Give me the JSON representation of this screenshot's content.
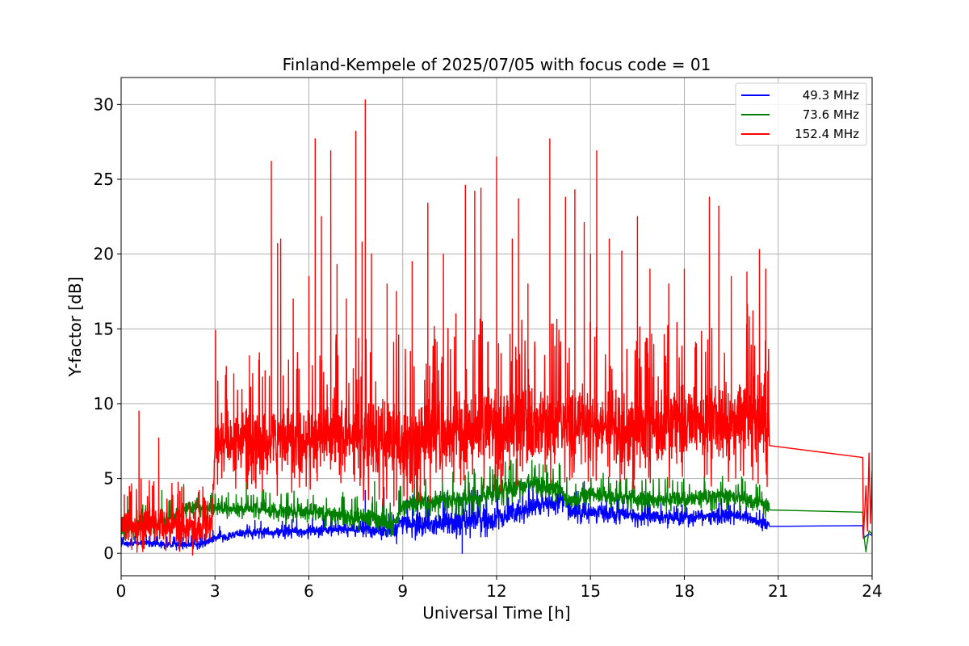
{
  "chart_data": {
    "type": "line",
    "title": "Finland-Kempele of 2025/07/05 with focus code = 01",
    "xlabel": "Universal Time [h]",
    "ylabel": "Y-factor [dB]",
    "xlim": [
      0,
      24
    ],
    "ylim": [
      -1.5,
      31.8
    ],
    "xticks": [
      0,
      3,
      6,
      9,
      12,
      15,
      18,
      21,
      24
    ],
    "yticks": [
      0,
      5,
      10,
      15,
      20,
      25,
      30
    ],
    "grid": true,
    "legend_position": "top-right",
    "series": [
      {
        "name": "49.3 MHz",
        "color": "#0000ff",
        "style": "noisy",
        "base": [
          [
            0.0,
            0.6
          ],
          [
            0.5,
            0.7
          ],
          [
            1.5,
            0.6
          ],
          [
            2.5,
            0.6
          ],
          [
            3.0,
            1.0
          ],
          [
            4.0,
            1.4
          ],
          [
            6.0,
            1.5
          ],
          [
            7.0,
            1.6
          ],
          [
            8.0,
            1.6
          ],
          [
            8.7,
            1.5
          ],
          [
            9.0,
            2.0
          ],
          [
            10.0,
            2.0
          ],
          [
            11.0,
            2.2
          ],
          [
            12.0,
            2.3
          ],
          [
            12.5,
            2.8
          ],
          [
            13.5,
            3.3
          ],
          [
            14.2,
            3.6
          ],
          [
            14.3,
            2.8
          ],
          [
            15.0,
            2.8
          ],
          [
            16.0,
            2.6
          ],
          [
            17.0,
            2.4
          ],
          [
            18.0,
            2.4
          ],
          [
            19.0,
            2.6
          ],
          [
            20.0,
            2.4
          ],
          [
            20.7,
            1.9
          ]
        ],
        "amp": [
          [
            0.0,
            0.2
          ],
          [
            3.0,
            0.3
          ],
          [
            8.0,
            0.4
          ],
          [
            9.0,
            0.8
          ],
          [
            12.0,
            0.8
          ],
          [
            14.0,
            0.6
          ],
          [
            17.0,
            0.5
          ],
          [
            20.7,
            0.4
          ]
        ],
        "spikes": [
          [
            7.8,
            4.2
          ],
          [
            8.4,
            4.4
          ],
          [
            10.9,
            0.0
          ],
          [
            14.8,
            4.8
          ]
        ],
        "tail": [
          [
            20.72,
            1.8
          ],
          [
            23.7,
            1.85
          ]
        ],
        "end": [
          [
            23.72,
            1.0
          ],
          [
            23.9,
            1.3
          ],
          [
            24.0,
            1.2
          ]
        ]
      },
      {
        "name": "73.6 MHz",
        "color": "#008000",
        "style": "noisy",
        "base": [
          [
            0.0,
            1.6
          ],
          [
            1.5,
            2.2
          ],
          [
            2.0,
            3.0
          ],
          [
            3.0,
            3.0
          ],
          [
            4.0,
            3.0
          ],
          [
            5.0,
            2.8
          ],
          [
            6.0,
            2.8
          ],
          [
            7.0,
            2.5
          ],
          [
            8.0,
            2.4
          ],
          [
            8.7,
            1.8
          ],
          [
            9.0,
            3.2
          ],
          [
            10.0,
            3.5
          ],
          [
            11.0,
            3.6
          ],
          [
            12.0,
            4.2
          ],
          [
            13.0,
            4.6
          ],
          [
            14.0,
            4.4
          ],
          [
            14.3,
            3.5
          ],
          [
            15.0,
            4.0
          ],
          [
            16.0,
            3.8
          ],
          [
            17.0,
            3.6
          ],
          [
            18.0,
            3.6
          ],
          [
            19.0,
            3.8
          ],
          [
            20.0,
            3.6
          ],
          [
            20.7,
            3.2
          ]
        ],
        "amp": [
          [
            0.0,
            0.6
          ],
          [
            3.0,
            0.5
          ],
          [
            9.0,
            0.7
          ],
          [
            12.0,
            0.8
          ],
          [
            15.0,
            0.6
          ],
          [
            20.7,
            0.6
          ]
        ],
        "spikes": [
          [
            0.2,
            3.8
          ],
          [
            1.3,
            4.2
          ],
          [
            2.0,
            4.6
          ],
          [
            4.0,
            4.9
          ],
          [
            8.1,
            4.8
          ],
          [
            12.4,
            5.8
          ],
          [
            14.0,
            6.0
          ]
        ],
        "tail": [
          [
            20.72,
            2.9
          ],
          [
            23.7,
            2.75
          ]
        ],
        "end": [
          [
            23.72,
            1.5
          ],
          [
            23.8,
            0.1
          ],
          [
            23.9,
            1.5
          ],
          [
            24.0,
            1.3
          ]
        ]
      },
      {
        "name": "152.4 MHz",
        "color": "#ff0000",
        "style": "noisy",
        "base": [
          [
            0.0,
            1.8
          ],
          [
            1.0,
            2.0
          ],
          [
            2.0,
            1.6
          ],
          [
            2.9,
            1.8
          ],
          [
            3.0,
            7.4
          ],
          [
            4.0,
            7.6
          ],
          [
            5.0,
            7.6
          ],
          [
            6.0,
            7.6
          ],
          [
            7.0,
            7.8
          ],
          [
            8.0,
            7.6
          ],
          [
            9.0,
            7.4
          ],
          [
            10.0,
            7.8
          ],
          [
            11.0,
            8.2
          ],
          [
            12.0,
            8.6
          ],
          [
            13.0,
            8.6
          ],
          [
            14.0,
            8.8
          ],
          [
            15.0,
            8.6
          ],
          [
            16.0,
            8.4
          ],
          [
            17.0,
            8.4
          ],
          [
            18.0,
            8.6
          ],
          [
            19.0,
            8.8
          ],
          [
            20.0,
            9.4
          ],
          [
            20.7,
            9.2
          ]
        ],
        "amp": [
          [
            0.0,
            1.3
          ],
          [
            2.9,
            1.2
          ],
          [
            3.0,
            2.0
          ],
          [
            5.0,
            2.5
          ],
          [
            9.0,
            3.0
          ],
          [
            12.0,
            3.0
          ],
          [
            15.0,
            2.8
          ],
          [
            18.0,
            2.8
          ],
          [
            20.7,
            3.2
          ]
        ],
        "spikes": [
          [
            0.1,
            3.9
          ],
          [
            0.3,
            4.1
          ],
          [
            0.57,
            9.5
          ],
          [
            1.0,
            4.5
          ],
          [
            1.2,
            7.7
          ],
          [
            2.0,
            4.4
          ],
          [
            2.5,
            4.2
          ],
          [
            3.02,
            14.9
          ],
          [
            3.6,
            12.0
          ],
          [
            4.1,
            13.2
          ],
          [
            4.6,
            12.2
          ],
          [
            4.8,
            26.2
          ],
          [
            5.0,
            20.7
          ],
          [
            5.1,
            21.0
          ],
          [
            5.5,
            17.0
          ],
          [
            6.0,
            18.5
          ],
          [
            6.2,
            27.7
          ],
          [
            6.4,
            22.5
          ],
          [
            6.7,
            26.9
          ],
          [
            6.9,
            19.3
          ],
          [
            7.2,
            17.0
          ],
          [
            7.5,
            28.2
          ],
          [
            7.7,
            20.8
          ],
          [
            7.8,
            30.3
          ],
          [
            8.0,
            20.0
          ],
          [
            8.5,
            18.0
          ],
          [
            8.8,
            17.5
          ],
          [
            9.3,
            19.5
          ],
          [
            9.8,
            23.4
          ],
          [
            10.3,
            20.0
          ],
          [
            10.7,
            16.0
          ],
          [
            11.0,
            24.6
          ],
          [
            11.3,
            24.2
          ],
          [
            11.5,
            24.4
          ],
          [
            12.0,
            26.5
          ],
          [
            12.5,
            21.0
          ],
          [
            12.7,
            23.7
          ],
          [
            13.0,
            18.0
          ],
          [
            13.7,
            27.7
          ],
          [
            14.2,
            23.8
          ],
          [
            14.5,
            24.3
          ],
          [
            14.8,
            22.1
          ],
          [
            15.0,
            20.0
          ],
          [
            15.2,
            26.9
          ],
          [
            15.6,
            21.0
          ],
          [
            16.0,
            20.2
          ],
          [
            16.5,
            22.5
          ],
          [
            16.9,
            19.0
          ],
          [
            17.5,
            18.0
          ],
          [
            18.0,
            19.0
          ],
          [
            18.8,
            23.8
          ],
          [
            19.1,
            23.2
          ],
          [
            19.5,
            18.5
          ],
          [
            20.0,
            18.8
          ],
          [
            20.4,
            20.3
          ],
          [
            20.6,
            19.0
          ]
        ],
        "tail": [
          [
            20.72,
            7.2
          ],
          [
            23.7,
            6.4
          ]
        ],
        "end": [
          [
            23.72,
            1.0
          ],
          [
            23.8,
            4.5
          ],
          [
            23.85,
            1.5
          ],
          [
            23.9,
            6.7
          ],
          [
            23.95,
            2.0
          ],
          [
            24.0,
            5.5
          ]
        ]
      }
    ]
  }
}
